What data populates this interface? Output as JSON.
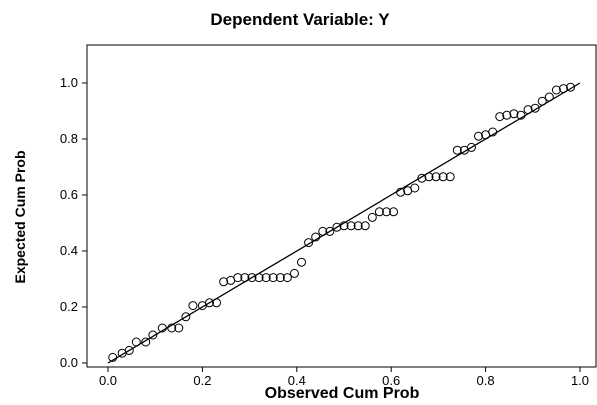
{
  "chart_data": {
    "type": "scatter",
    "title": "Dependent Variable: Y",
    "xlabel": "Observed Cum Prob",
    "ylabel": "Expected Cum Prob",
    "xlim": [
      0.0,
      1.0
    ],
    "ylim": [
      0.0,
      1.0
    ],
    "xticks": [
      "0.0",
      "0.2",
      "0.4",
      "0.6",
      "0.8",
      "1.0"
    ],
    "yticks": [
      "0.0",
      "0.2",
      "0.4",
      "0.6",
      "0.8",
      "1.0"
    ],
    "reference_line": {
      "from": [
        0,
        0
      ],
      "to": [
        1,
        1
      ]
    },
    "grid": false,
    "marker": "open-circle",
    "points": [
      [
        0.01,
        0.02
      ],
      [
        0.03,
        0.035
      ],
      [
        0.045,
        0.045
      ],
      [
        0.06,
        0.075
      ],
      [
        0.08,
        0.075
      ],
      [
        0.095,
        0.1
      ],
      [
        0.115,
        0.125
      ],
      [
        0.135,
        0.125
      ],
      [
        0.15,
        0.125
      ],
      [
        0.165,
        0.165
      ],
      [
        0.18,
        0.205
      ],
      [
        0.2,
        0.205
      ],
      [
        0.215,
        0.215
      ],
      [
        0.23,
        0.215
      ],
      [
        0.245,
        0.29
      ],
      [
        0.26,
        0.295
      ],
      [
        0.275,
        0.305
      ],
      [
        0.29,
        0.305
      ],
      [
        0.305,
        0.305
      ],
      [
        0.32,
        0.305
      ],
      [
        0.335,
        0.305
      ],
      [
        0.35,
        0.305
      ],
      [
        0.365,
        0.305
      ],
      [
        0.38,
        0.305
      ],
      [
        0.395,
        0.32
      ],
      [
        0.41,
        0.36
      ],
      [
        0.425,
        0.43
      ],
      [
        0.44,
        0.45
      ],
      [
        0.455,
        0.47
      ],
      [
        0.47,
        0.47
      ],
      [
        0.485,
        0.485
      ],
      [
        0.5,
        0.49
      ],
      [
        0.515,
        0.49
      ],
      [
        0.53,
        0.49
      ],
      [
        0.545,
        0.49
      ],
      [
        0.56,
        0.52
      ],
      [
        0.575,
        0.54
      ],
      [
        0.59,
        0.54
      ],
      [
        0.605,
        0.54
      ],
      [
        0.62,
        0.61
      ],
      [
        0.635,
        0.615
      ],
      [
        0.65,
        0.625
      ],
      [
        0.665,
        0.66
      ],
      [
        0.68,
        0.665
      ],
      [
        0.695,
        0.665
      ],
      [
        0.71,
        0.665
      ],
      [
        0.725,
        0.665
      ],
      [
        0.74,
        0.76
      ],
      [
        0.755,
        0.76
      ],
      [
        0.77,
        0.77
      ],
      [
        0.785,
        0.81
      ],
      [
        0.8,
        0.815
      ],
      [
        0.815,
        0.825
      ],
      [
        0.83,
        0.88
      ],
      [
        0.845,
        0.885
      ],
      [
        0.86,
        0.89
      ],
      [
        0.875,
        0.885
      ],
      [
        0.89,
        0.905
      ],
      [
        0.905,
        0.91
      ],
      [
        0.92,
        0.935
      ],
      [
        0.935,
        0.95
      ],
      [
        0.95,
        0.975
      ],
      [
        0.965,
        0.98
      ],
      [
        0.98,
        0.985
      ]
    ]
  }
}
